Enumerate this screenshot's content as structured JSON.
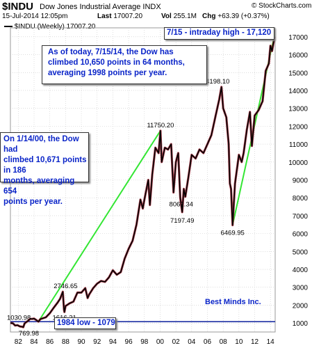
{
  "header": {
    "symbol": "$INDU",
    "name": "Dow Jones Industrial Average INDX",
    "brand": "© StockCharts.com",
    "date": "15-Jul-2014 12:05pm",
    "last_label": "Last",
    "last_value": "17007.20",
    "vol_label": "Vol",
    "vol_value": "255.1M",
    "chg_label": "Chg",
    "chg_value": "+63.39 (+0.37%)",
    "series_label": "$INDU (Weekly) 17007.20"
  },
  "annotations": {
    "intraday": "7/15 - intraday high - 17,120",
    "today": [
      "As of today, 7/15/14, the Dow has",
      "climbed 10,650 points in 64 months,",
      "averaging 1998 points per year."
    ],
    "y2000": [
      "On 1/14/00, the Dow had",
      "climbed 10,671 points in 186",
      "months, averaging 654",
      "points per year."
    ],
    "low1984": "1984 low - 1079",
    "credit": "Best Minds Inc."
  },
  "colors": {
    "price": "#000000",
    "price_down": "#9a2030",
    "trend": "#33e633",
    "hline": "#0a1e9c",
    "grid": "#c8c8c8",
    "text_blue": "#0a24c8"
  },
  "chart_data": {
    "type": "line",
    "x_tick_labels": [
      "82",
      "84",
      "86",
      "88",
      "90",
      "92",
      "94",
      "96",
      "98",
      "00",
      "02",
      "04",
      "06",
      "08",
      "10",
      "12",
      "14"
    ],
    "ylim": [
      500,
      17500
    ],
    "y_ticks": [
      1000,
      2000,
      3000,
      4000,
      5000,
      6000,
      7000,
      8000,
      9000,
      10000,
      11000,
      12000,
      13000,
      14000,
      15000,
      16000,
      17000
    ],
    "x_range": [
      1981,
      2014.6
    ],
    "series": [
      {
        "values": [
          [
            1981.0,
            1000
          ],
          [
            1981.3,
            990
          ],
          [
            1981.6,
            860
          ],
          [
            1981.9,
            880
          ],
          [
            1982.2,
            810
          ],
          [
            1982.5,
            790
          ],
          [
            1982.63,
            769.98
          ],
          [
            1982.8,
            980
          ],
          [
            1983.0,
            1050
          ],
          [
            1983.3,
            1150
          ],
          [
            1983.5,
            1230
          ],
          [
            1983.8,
            1230
          ],
          [
            1984.0,
            1250
          ],
          [
            1984.3,
            1160
          ],
          [
            1984.55,
            1079
          ],
          [
            1984.8,
            1220
          ],
          [
            1985.0,
            1250
          ],
          [
            1985.5,
            1320
          ],
          [
            1986.0,
            1550
          ],
          [
            1986.5,
            1860
          ],
          [
            1987.0,
            2150
          ],
          [
            1987.3,
            2350
          ],
          [
            1987.65,
            2746.65
          ],
          [
            1987.8,
            1750
          ],
          [
            1987.85,
            1616.21
          ],
          [
            1988.0,
            1950
          ],
          [
            1988.5,
            2100
          ],
          [
            1989.0,
            2200
          ],
          [
            1989.5,
            2700
          ],
          [
            1990.0,
            2700
          ],
          [
            1990.5,
            2950
          ],
          [
            1990.8,
            2400
          ],
          [
            1991.0,
            2600
          ],
          [
            1991.5,
            2950
          ],
          [
            1992.0,
            3200
          ],
          [
            1992.5,
            3350
          ],
          [
            1993.0,
            3300
          ],
          [
            1993.5,
            3550
          ],
          [
            1994.0,
            3950
          ],
          [
            1994.5,
            3700
          ],
          [
            1995.0,
            3850
          ],
          [
            1995.5,
            4600
          ],
          [
            1996.0,
            5150
          ],
          [
            1996.5,
            5600
          ],
          [
            1997.0,
            6500
          ],
          [
            1997.5,
            7900
          ],
          [
            1997.8,
            7400
          ],
          [
            1998.0,
            7900
          ],
          [
            1998.5,
            9000
          ],
          [
            1998.7,
            7600
          ],
          [
            1999.0,
            9300
          ],
          [
            1999.4,
            10800
          ],
          [
            1999.8,
            10500
          ],
          [
            2000.04,
            11750.2
          ],
          [
            2000.2,
            10000
          ],
          [
            2000.6,
            10800
          ],
          [
            2001.0,
            10700
          ],
          [
            2001.4,
            11000
          ],
          [
            2001.7,
            8300
          ],
          [
            2002.0,
            10000
          ],
          [
            2002.3,
            10500
          ],
          [
            2002.55,
            8000
          ],
          [
            2002.8,
            7197.49
          ],
          [
            2003.0,
            8500
          ],
          [
            2003.2,
            8062.34
          ],
          [
            2003.6,
            9200
          ],
          [
            2004.0,
            10400
          ],
          [
            2004.5,
            10200
          ],
          [
            2005.0,
            10700
          ],
          [
            2005.5,
            10500
          ],
          [
            2006.0,
            11000
          ],
          [
            2006.5,
            11500
          ],
          [
            2007.0,
            12500
          ],
          [
            2007.5,
            13500
          ],
          [
            2007.78,
            14198.1
          ],
          [
            2008.0,
            13000
          ],
          [
            2008.4,
            12500
          ],
          [
            2008.7,
            11000
          ],
          [
            2008.85,
            8800
          ],
          [
            2009.0,
            8500
          ],
          [
            2009.19,
            6469.95
          ],
          [
            2009.5,
            8800
          ],
          [
            2010.0,
            10400
          ],
          [
            2010.35,
            10000
          ],
          [
            2010.6,
            10500
          ],
          [
            2011.0,
            11800
          ],
          [
            2011.4,
            12800
          ],
          [
            2011.65,
            10900
          ],
          [
            2012.0,
            12600
          ],
          [
            2012.5,
            12900
          ],
          [
            2013.0,
            13400
          ],
          [
            2013.4,
            15100
          ],
          [
            2013.8,
            15500
          ],
          [
            2014.0,
            16500
          ],
          [
            2014.2,
            16200
          ],
          [
            2014.53,
            17007.2
          ]
        ]
      }
    ],
    "price_labels": [
      {
        "x": 1981.15,
        "y": 1030.98,
        "text": "1030.98"
      },
      {
        "x": 1982.63,
        "y": 769.98,
        "text": "769.98"
      },
      {
        "x": 1987.65,
        "y": 2746.65,
        "text": "2746.65"
      },
      {
        "x": 1987.85,
        "y": 1616.21,
        "text": "1616.21"
      },
      {
        "x": 2000.04,
        "y": 11750.2,
        "text": "11750.20"
      },
      {
        "x": 2003.2,
        "y": 8062.34,
        "text": "8062.34"
      },
      {
        "x": 2002.8,
        "y": 7197.49,
        "text": "7197.49"
      },
      {
        "x": 2007.78,
        "y": 14198.1,
        "text": "14198.10"
      },
      {
        "x": 2009.19,
        "y": 6469.95,
        "text": "6469.95"
      }
    ],
    "trend_lines": [
      {
        "from": [
          1984.55,
          1079
        ],
        "to": [
          2000.04,
          11750.2
        ]
      },
      {
        "from": [
          2009.19,
          6469.95
        ],
        "to": [
          2014.53,
          17120
        ]
      }
    ],
    "horizontal_line": {
      "y": 1079,
      "label": "1984 low - 1079"
    }
  }
}
